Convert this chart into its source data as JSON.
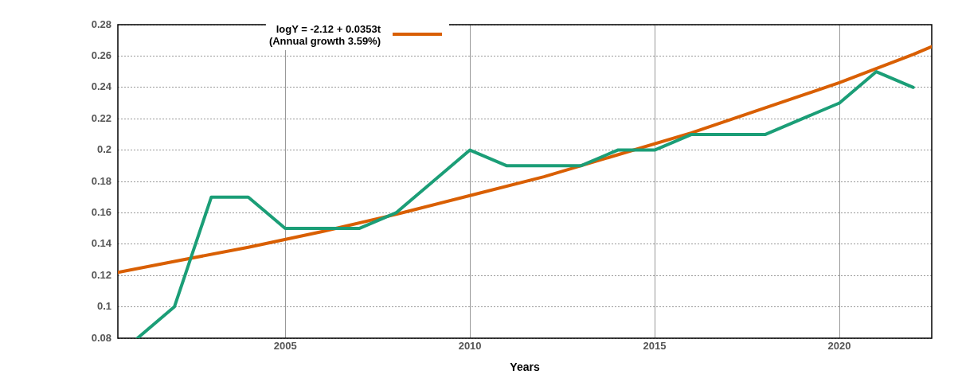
{
  "chart_data": {
    "type": "line",
    "xlabel": "Years",
    "xlim": [
      2000.47,
      2022.5
    ],
    "xticks": [
      2005,
      2010,
      2015,
      2020
    ],
    "ylim": [
      0.08,
      0.28
    ],
    "yticks": [
      0.08,
      0.1,
      0.12,
      0.14,
      0.16,
      0.18,
      0.2,
      0.22,
      0.24,
      0.26,
      0.28
    ],
    "grid": true,
    "legend": "top left",
    "marker": "none",
    "line_style": "solid",
    "series": [
      {
        "color": "#1b9e77",
        "x": [
          2001,
          2002,
          2003,
          2004,
          2005,
          2006,
          2007,
          2008,
          2009,
          2010,
          2011,
          2012,
          2013,
          2014,
          2015,
          2016,
          2017,
          2018,
          2019,
          2020,
          2021,
          2022
        ],
        "values": [
          0.08,
          0.1,
          0.17,
          0.17,
          0.15,
          0.15,
          0.15,
          0.16,
          0.18,
          0.2,
          0.19,
          0.19,
          0.19,
          0.2,
          0.2,
          0.21,
          0.21,
          0.21,
          0.22,
          0.23,
          0.25,
          0.24
        ]
      },
      {
        "name": "logY = -2.12 + 0.0353t\n(Annual growth 3.59%)",
        "color": "#d95f02",
        "x": [
          2000.47,
          2002,
          2004,
          2006,
          2008,
          2010,
          2012,
          2014,
          2016,
          2018,
          2020,
          2022,
          2022.5
        ],
        "values": [
          0.122,
          0.129,
          0.138,
          0.148,
          0.159,
          0.171,
          0.183,
          0.197,
          0.211,
          0.227,
          0.243,
          0.261,
          0.266
        ]
      }
    ]
  }
}
